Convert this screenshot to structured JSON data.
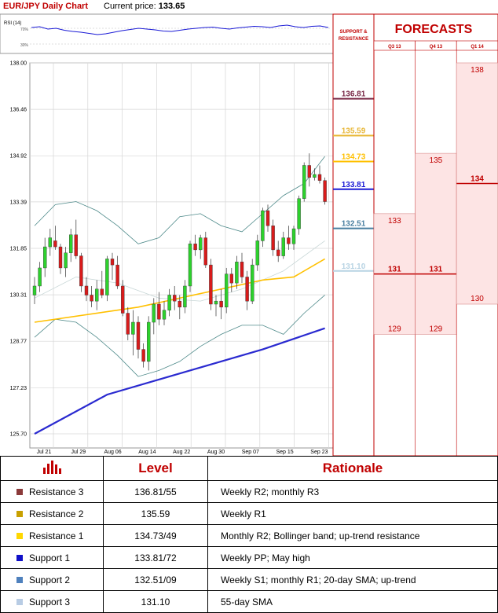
{
  "header": {
    "title": "EUR/JPY Daily Chart",
    "price_label": "Current price:",
    "price_value": "133.65"
  },
  "chart_data": [
    {
      "type": "candlestick",
      "ylim": [
        125.7,
        138.0
      ],
      "yticks": [
        "138.00",
        "136.46",
        "134.92",
        "133.39",
        "131.85",
        "130.31",
        "128.77",
        "127.23",
        "125.70"
      ],
      "xticks": [
        "Jul 21",
        "Jul 29",
        "Aug 06",
        "Aug 14",
        "Aug 22",
        "Aug 30",
        "Sep 07",
        "Sep 15",
        "Sep 23"
      ],
      "candles": [
        [
          130.3,
          130.9,
          130.0,
          130.6
        ],
        [
          130.6,
          131.4,
          130.4,
          131.2
        ],
        [
          131.2,
          132.2,
          130.9,
          131.9
        ],
        [
          131.9,
          132.5,
          131.6,
          132.2
        ],
        [
          132.1,
          132.6,
          131.8,
          131.9
        ],
        [
          131.9,
          132.0,
          131.0,
          131.2
        ],
        [
          131.2,
          131.9,
          130.9,
          131.7
        ],
        [
          131.7,
          132.5,
          131.4,
          132.3
        ],
        [
          132.3,
          132.8,
          131.5,
          131.6
        ],
        [
          131.6,
          131.7,
          130.4,
          130.6
        ],
        [
          130.6,
          130.9,
          130.1,
          130.3
        ],
        [
          130.3,
          130.6,
          129.9,
          130.1
        ],
        [
          130.1,
          130.8,
          129.8,
          130.5
        ],
        [
          130.5,
          131.1,
          130.2,
          130.3
        ],
        [
          130.3,
          131.6,
          130.1,
          131.5
        ],
        [
          131.5,
          131.7,
          130.8,
          131.3
        ],
        [
          131.3,
          131.6,
          130.5,
          130.6
        ],
        [
          130.6,
          130.8,
          129.6,
          129.7
        ],
        [
          129.7,
          129.9,
          128.8,
          129.0
        ],
        [
          129.0,
          129.8,
          128.3,
          129.4
        ],
        [
          129.4,
          129.6,
          128.2,
          128.5
        ],
        [
          128.5,
          128.7,
          127.9,
          128.1
        ],
        [
          128.1,
          129.6,
          127.8,
          129.4
        ],
        [
          129.4,
          130.2,
          129.0,
          130.0
        ],
        [
          130.0,
          130.4,
          129.3,
          129.5
        ],
        [
          129.5,
          130.1,
          129.3,
          129.8
        ],
        [
          129.8,
          130.5,
          129.6,
          130.3
        ],
        [
          130.3,
          130.6,
          129.8,
          130.1
        ],
        [
          130.1,
          130.3,
          129.5,
          129.9
        ],
        [
          129.9,
          130.8,
          129.7,
          130.6
        ],
        [
          130.6,
          132.1,
          130.4,
          132.0
        ],
        [
          132.0,
          132.3,
          131.6,
          131.8
        ],
        [
          131.8,
          132.3,
          131.5,
          132.2
        ],
        [
          132.2,
          132.4,
          131.2,
          131.3
        ],
        [
          131.3,
          131.5,
          129.8,
          130.0
        ],
        [
          130.0,
          130.3,
          129.6,
          130.1
        ],
        [
          130.1,
          130.5,
          129.5,
          129.9
        ],
        [
          129.9,
          131.2,
          129.7,
          131.0
        ],
        [
          131.0,
          131.2,
          130.4,
          130.7
        ],
        [
          130.7,
          131.6,
          130.5,
          131.4
        ],
        [
          131.4,
          131.7,
          130.7,
          130.9
        ],
        [
          130.9,
          131.1,
          129.8,
          130.1
        ],
        [
          130.1,
          131.5,
          130.0,
          131.3
        ],
        [
          131.3,
          132.3,
          131.1,
          132.1
        ],
        [
          132.1,
          133.2,
          131.9,
          133.1
        ],
        [
          133.1,
          133.3,
          132.4,
          132.6
        ],
        [
          132.6,
          132.8,
          131.6,
          131.8
        ],
        [
          131.8,
          132.1,
          131.4,
          131.6
        ],
        [
          131.6,
          132.4,
          131.5,
          132.2
        ],
        [
          132.2,
          132.6,
          131.8,
          132.0
        ],
        [
          132.0,
          132.6,
          131.8,
          132.5
        ],
        [
          132.5,
          133.6,
          132.3,
          133.5
        ],
        [
          133.5,
          134.7,
          133.4,
          134.6
        ],
        [
          134.6,
          135.0,
          133.9,
          134.2
        ],
        [
          134.2,
          134.5,
          134.1,
          134.3
        ],
        [
          134.3,
          134.6,
          134.0,
          134.1
        ],
        [
          134.1,
          134.2,
          133.3,
          133.4
        ]
      ],
      "sma_a": [
        [
          0,
          129.4
        ],
        [
          20,
          129.9
        ],
        [
          44,
          130.8
        ],
        [
          50,
          130.9
        ],
        [
          56,
          131.5
        ]
      ],
      "sma_b": [
        [
          0,
          125.7
        ],
        [
          14,
          127.0
        ],
        [
          26,
          127.6
        ],
        [
          32,
          127.9
        ],
        [
          44,
          128.5
        ],
        [
          56,
          129.2
        ]
      ],
      "bb_upper": [
        [
          0,
          132.6
        ],
        [
          4,
          133.3
        ],
        [
          8,
          133.4
        ],
        [
          12,
          133.1
        ],
        [
          16,
          132.6
        ],
        [
          20,
          132.0
        ],
        [
          24,
          132.2
        ],
        [
          28,
          132.9
        ],
        [
          32,
          133.0
        ],
        [
          36,
          132.6
        ],
        [
          40,
          132.4
        ],
        [
          44,
          133.0
        ],
        [
          48,
          133.6
        ],
        [
          52,
          134.0
        ],
        [
          56,
          134.9
        ]
      ],
      "bb_lower": [
        [
          0,
          128.9
        ],
        [
          4,
          129.5
        ],
        [
          8,
          129.4
        ],
        [
          12,
          128.9
        ],
        [
          16,
          128.3
        ],
        [
          20,
          127.6
        ],
        [
          24,
          127.8
        ],
        [
          28,
          128.1
        ],
        [
          32,
          128.6
        ],
        [
          36,
          129.0
        ],
        [
          40,
          129.3
        ],
        [
          44,
          129.3
        ],
        [
          48,
          129.0
        ],
        [
          52,
          129.7
        ],
        [
          56,
          130.3
        ]
      ],
      "sma_c": [
        [
          0,
          130.2
        ],
        [
          8,
          130.9
        ],
        [
          16,
          130.7
        ],
        [
          24,
          130.2
        ],
        [
          32,
          130.1
        ],
        [
          40,
          130.5
        ],
        [
          48,
          131.1
        ],
        [
          56,
          132.1
        ]
      ],
      "rsi": {
        "label": "RSI (14)",
        "levels": [
          "70%",
          "30%"
        ],
        "values": [
          62,
          64,
          58,
          60,
          55,
          52,
          50,
          47,
          44,
          46,
          50,
          54,
          57,
          60,
          58,
          56,
          53,
          52,
          55,
          58,
          60,
          62,
          63,
          60,
          58,
          61,
          63,
          65,
          64,
          62,
          66,
          68,
          64,
          62,
          65,
          66,
          62
        ]
      },
      "sr_levels": [
        {
          "value": "136.81",
          "price": 136.81,
          "color": "#7a2b48"
        },
        {
          "value": "135.59",
          "price": 135.59,
          "color": "#e8b83a"
        },
        {
          "value": "134.73",
          "price": 134.73,
          "color": "#ffc000"
        },
        {
          "value": "133.81",
          "price": 133.81,
          "color": "#1a1ad6"
        },
        {
          "value": "132.51",
          "price": 132.51,
          "color": "#4a7fa0"
        },
        {
          "value": "131.10",
          "price": 131.1,
          "color": "#b7d3e3"
        }
      ]
    },
    {
      "type": "range-forecast",
      "title": "FORECASTS",
      "sr_title": [
        "SUPPORT &",
        "RESISTANCE"
      ],
      "columns": [
        {
          "name": "Q3 13",
          "high": 133,
          "mid": 131,
          "low": 129
        },
        {
          "name": "Q4 13",
          "high": 135,
          "mid": 131,
          "low": 129
        },
        {
          "name": "Q1 14",
          "high": 138,
          "mid": 134,
          "low": 130
        }
      ]
    }
  ],
  "table": {
    "headers": [
      "Level",
      "Rationale"
    ],
    "header_icon": "bar-chart-icon",
    "rows": [
      {
        "name": "Resistance 3",
        "level": "136.81/55",
        "rationale": "Weekly R2; monthly R3",
        "color": "#8b3a3a"
      },
      {
        "name": "Resistance 2",
        "level": "135.59",
        "rationale": "Weekly R1",
        "color": "#c8a000"
      },
      {
        "name": "Resistance 1",
        "level": "134.73/49",
        "rationale": "Monthly R2; Bollinger band; up-trend resistance",
        "color": "#ffd700"
      },
      {
        "name": "Support 1",
        "level": "133.81/72",
        "rationale": "Weekly PP; May high",
        "color": "#1010c8"
      },
      {
        "name": "Support 2",
        "level": "132.51/09",
        "rationale": "Weekly S1; monthly R1; 20-day SMA; up-trend",
        "color": "#4f81bd"
      },
      {
        "name": "Support 3",
        "level": "131.10",
        "rationale": "55-day SMA",
        "color": "#b8cce4"
      }
    ]
  }
}
